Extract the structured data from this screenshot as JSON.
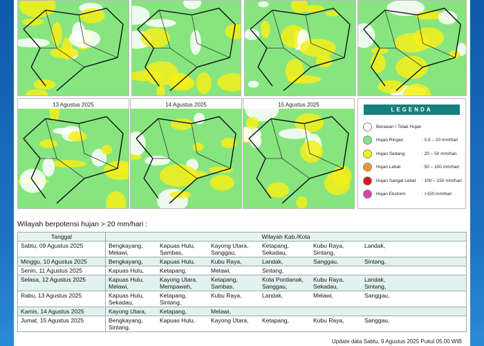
{
  "map_dates": [
    "13 Agustus 2025",
    "14 Agustus 2025",
    "15 Agustus 2025"
  ],
  "legend": {
    "title": "LEGENDA",
    "items": [
      {
        "label": "Berawan / Tidak Hujan",
        "color": "#ffffff"
      },
      {
        "label": "Hujan Ringan",
        "range": ": 0.5 – 20 mm/hari",
        "color": "#86e57f"
      },
      {
        "label": "Hujan Sedang",
        "range": ": 20 – 50 mm/hari",
        "color": "#f4ef1a"
      },
      {
        "label": "Hujan Lebat",
        "range": ": 50 – 100 mm/hari",
        "color": "#ef9630"
      },
      {
        "label": "Hujan Sangat Lebat",
        "range": ": 100 – 150 mm/hari",
        "color": "#e0141b"
      },
      {
        "label": "Hujan Ekstrem",
        "range": ": >150 mm/hari",
        "color": "#d446a9"
      }
    ]
  },
  "section_title": "Wilayah berpotensi hujan > 20 mm/hari :",
  "table": {
    "columns": [
      "Tanggal",
      "Wilayah Kab./Kota"
    ],
    "rows": [
      {
        "date": "Sabtu, 09 Agustus 2025",
        "regions": [
          "Bengkayang,",
          "Kapuas Hulu,",
          "Kayong Utara,",
          "Ketapang,",
          "Kubu Raya,",
          "Landak,",
          "Melawi,",
          "Sambas,",
          "Sanggau,",
          "Sekadau,",
          "Sintang,"
        ]
      },
      {
        "date": "Minggu, 10 Agustus 2025",
        "regions": [
          "Bengkayang,",
          "Kapuas Hulu,",
          "Kubu Raya,",
          "Landak,",
          "Sanggau,",
          "Sintang,"
        ]
      },
      {
        "date": "Senin, 11 Agustus 2025",
        "regions": [
          "Kapuas Hulu,",
          "Ketapang,",
          "Melawi,",
          "Sintang,"
        ]
      },
      {
        "date": "Selasa, 12 Agustus 2025",
        "regions": [
          "Kapuas Hulu,",
          "Kayong Utara,",
          "Ketapang,",
          "Kota Pontianak,",
          "Kubu Raya,",
          "Landak,",
          "Melawi,",
          "Mempawah,",
          "Sambas,",
          "Sanggau,",
          "Sekadau,",
          "Sintang,"
        ]
      },
      {
        "date": "Rabu, 13 Agustus 2025",
        "regions": [
          "Kapuas Hulu,",
          "Ketapang,",
          "Kubu Raya,",
          "Landak,",
          "Melawi,",
          "Sanggau,",
          "Sekadau,",
          "Sintang,"
        ]
      },
      {
        "date": "Kamis, 14 Agustus 2025",
        "regions": [
          "Kayong Utara,",
          "Ketapang,",
          "Melawi,"
        ]
      },
      {
        "date": "Jumat, 15 Agustus 2025",
        "regions": [
          "Bengkayang,",
          "Kapuas Hulu,",
          "Kayong Utara,",
          "Ketapang,",
          "Kubu Raya,",
          "Sanggau,",
          "Sintang,"
        ]
      }
    ]
  },
  "footer": "Update data Sabtu, 9 Agustus 2025 Pukul 05.00 WIB"
}
